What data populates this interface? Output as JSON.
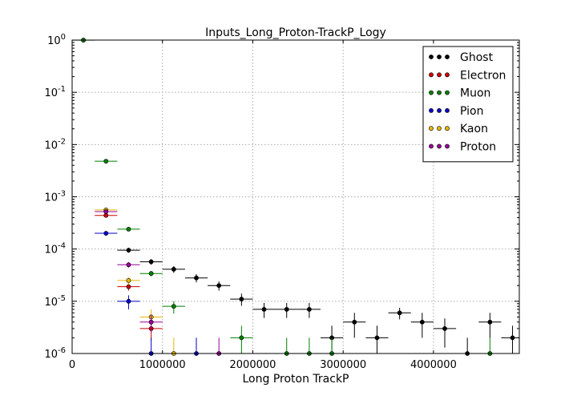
{
  "chart_data": {
    "type": "scatter",
    "title": "Inputs_Long_Proton-TrackP_Logy",
    "xlabel": "Long Proton TrackP",
    "ylabel": "",
    "xlim": [
      0,
      4950000
    ],
    "ylim": [
      1e-06,
      1
    ],
    "yscale": "log",
    "grid": true,
    "legend_position": "top-right",
    "x_bin_width": 250000,
    "xticks": [
      {
        "value": 0,
        "label": "0"
      },
      {
        "value": 1000000,
        "label": "1000000"
      },
      {
        "value": 2000000,
        "label": "2000000"
      },
      {
        "value": 3000000,
        "label": "3000000"
      },
      {
        "value": 4000000,
        "label": "4000000"
      }
    ],
    "yticks": [
      {
        "value": 1,
        "base": "10",
        "exp": "0"
      },
      {
        "value": 0.1,
        "base": "10",
        "exp": "-1"
      },
      {
        "value": 0.01,
        "base": "10",
        "exp": "-2"
      },
      {
        "value": 0.001,
        "base": "10",
        "exp": "-3"
      },
      {
        "value": 0.0001,
        "base": "10",
        "exp": "-4"
      },
      {
        "value": 1e-05,
        "base": "10",
        "exp": "-5"
      },
      {
        "value": 1e-06,
        "base": "10",
        "exp": "-6"
      }
    ],
    "series": [
      {
        "name": "Ghost",
        "color": "#000000",
        "points": [
          {
            "x": 125000,
            "y": 1.0
          },
          {
            "x": 625000,
            "y": 9.5e-05,
            "ylo": 8.5e-05,
            "yhi": 0.000106
          },
          {
            "x": 875000,
            "y": 5.7e-05,
            "ylo": 5e-05,
            "yhi": 6.4e-05
          },
          {
            "x": 1125000,
            "y": 4.1e-05,
            "ylo": 3.5e-05,
            "yhi": 4.7e-05
          },
          {
            "x": 1375000,
            "y": 2.8e-05,
            "ylo": 2.3e-05,
            "yhi": 3.3e-05
          },
          {
            "x": 1625000,
            "y": 2e-05,
            "ylo": 1.6e-05,
            "yhi": 2.4e-05
          },
          {
            "x": 1875000,
            "y": 1.1e-05,
            "ylo": 8.2e-06,
            "yhi": 1.4e-05
          },
          {
            "x": 2125000,
            "y": 7e-06,
            "ylo": 4.8e-06,
            "yhi": 9.3e-06
          },
          {
            "x": 2375000,
            "y": 7e-06,
            "ylo": 4.8e-06,
            "yhi": 9.3e-06
          },
          {
            "x": 2625000,
            "y": 7e-06,
            "ylo": 4.8e-06,
            "yhi": 9.3e-06
          },
          {
            "x": 2875000,
            "y": 2e-06,
            "ylo": 6e-07,
            "yhi": 3.4e-06
          },
          {
            "x": 3125000,
            "y": 4e-06,
            "ylo": 2e-06,
            "yhi": 6e-06
          },
          {
            "x": 3375000,
            "y": 2e-06,
            "ylo": 6e-07,
            "yhi": 3.4e-06
          },
          {
            "x": 3625000,
            "y": 6e-06,
            "ylo": 4.5e-06,
            "yhi": 7.5e-06
          },
          {
            "x": 3875000,
            "y": 4e-06,
            "ylo": 2e-06,
            "yhi": 6e-06
          },
          {
            "x": 4125000,
            "y": 3e-06,
            "ylo": 1.3e-06,
            "yhi": 4.7e-06
          },
          {
            "x": 4375000,
            "y": 1e-06,
            "ylo": 3e-07,
            "yhi": 2e-06
          },
          {
            "x": 4625000,
            "y": 4e-06,
            "ylo": 2e-06,
            "yhi": 6e-06
          },
          {
            "x": 4875000,
            "y": 2e-06,
            "ylo": 6e-07,
            "yhi": 3.4e-06
          }
        ]
      },
      {
        "name": "Electron",
        "color": "#cc0000",
        "points": [
          {
            "x": 375000,
            "y": 0.00044
          },
          {
            "x": 625000,
            "y": 1.9e-05,
            "ylo": 1.6e-05,
            "yhi": 2.2e-05
          },
          {
            "x": 875000,
            "y": 3e-06,
            "ylo": 1.8e-06,
            "yhi": 4.2e-06
          }
        ]
      },
      {
        "name": "Muon",
        "color": "#008000",
        "points": [
          {
            "x": 125000,
            "y": 0.995
          },
          {
            "x": 375000,
            "y": 0.0048
          },
          {
            "x": 625000,
            "y": 0.00024
          },
          {
            "x": 875000,
            "y": 3.4e-05,
            "ylo": 3e-05,
            "yhi": 3.8e-05
          },
          {
            "x": 1125000,
            "y": 8e-06,
            "ylo": 5.8e-06,
            "yhi": 1e-05
          },
          {
            "x": 1875000,
            "y": 2e-06,
            "ylo": 6e-07,
            "yhi": 3.4e-06
          },
          {
            "x": 2375000,
            "y": 1e-06,
            "ylo": 3e-07,
            "yhi": 2e-06
          },
          {
            "x": 2625000,
            "y": 1e-06,
            "ylo": 3e-07,
            "yhi": 2e-06
          },
          {
            "x": 2875000,
            "y": 1e-06,
            "ylo": 3e-07,
            "yhi": 2e-06
          },
          {
            "x": 4625000,
            "y": 1e-06,
            "ylo": 3e-07,
            "yhi": 2e-06
          }
        ]
      },
      {
        "name": "Pion",
        "color": "#0000cc",
        "points": [
          {
            "x": 375000,
            "y": 0.0002
          },
          {
            "x": 625000,
            "y": 1e-05,
            "ylo": 7e-06,
            "yhi": 1.3e-05
          },
          {
            "x": 875000,
            "y": 1e-06,
            "ylo": 3e-07,
            "yhi": 2e-06
          },
          {
            "x": 1375000,
            "y": 1e-06,
            "ylo": 3e-07,
            "yhi": 2e-06
          }
        ]
      },
      {
        "name": "Kaon",
        "color": "#e6b800",
        "points": [
          {
            "x": 375000,
            "y": 0.00056
          },
          {
            "x": 625000,
            "y": 2.5e-05,
            "ylo": 2.1e-05,
            "yhi": 2.9e-05
          },
          {
            "x": 875000,
            "y": 5e-06,
            "ylo": 3.5e-06,
            "yhi": 7e-06
          },
          {
            "x": 1125000,
            "y": 1e-06,
            "ylo": 3e-07,
            "yhi": 2e-06
          }
        ]
      },
      {
        "name": "Proton",
        "color": "#990099",
        "points": [
          {
            "x": 375000,
            "y": 0.00052
          },
          {
            "x": 625000,
            "y": 5e-05,
            "ylo": 4.4e-05,
            "yhi": 5.6e-05
          },
          {
            "x": 875000,
            "y": 4e-06,
            "ylo": 2.5e-06,
            "yhi": 5.5e-06
          },
          {
            "x": 1625000,
            "y": 1e-06,
            "ylo": 3e-07,
            "yhi": 2e-06
          }
        ]
      }
    ]
  }
}
